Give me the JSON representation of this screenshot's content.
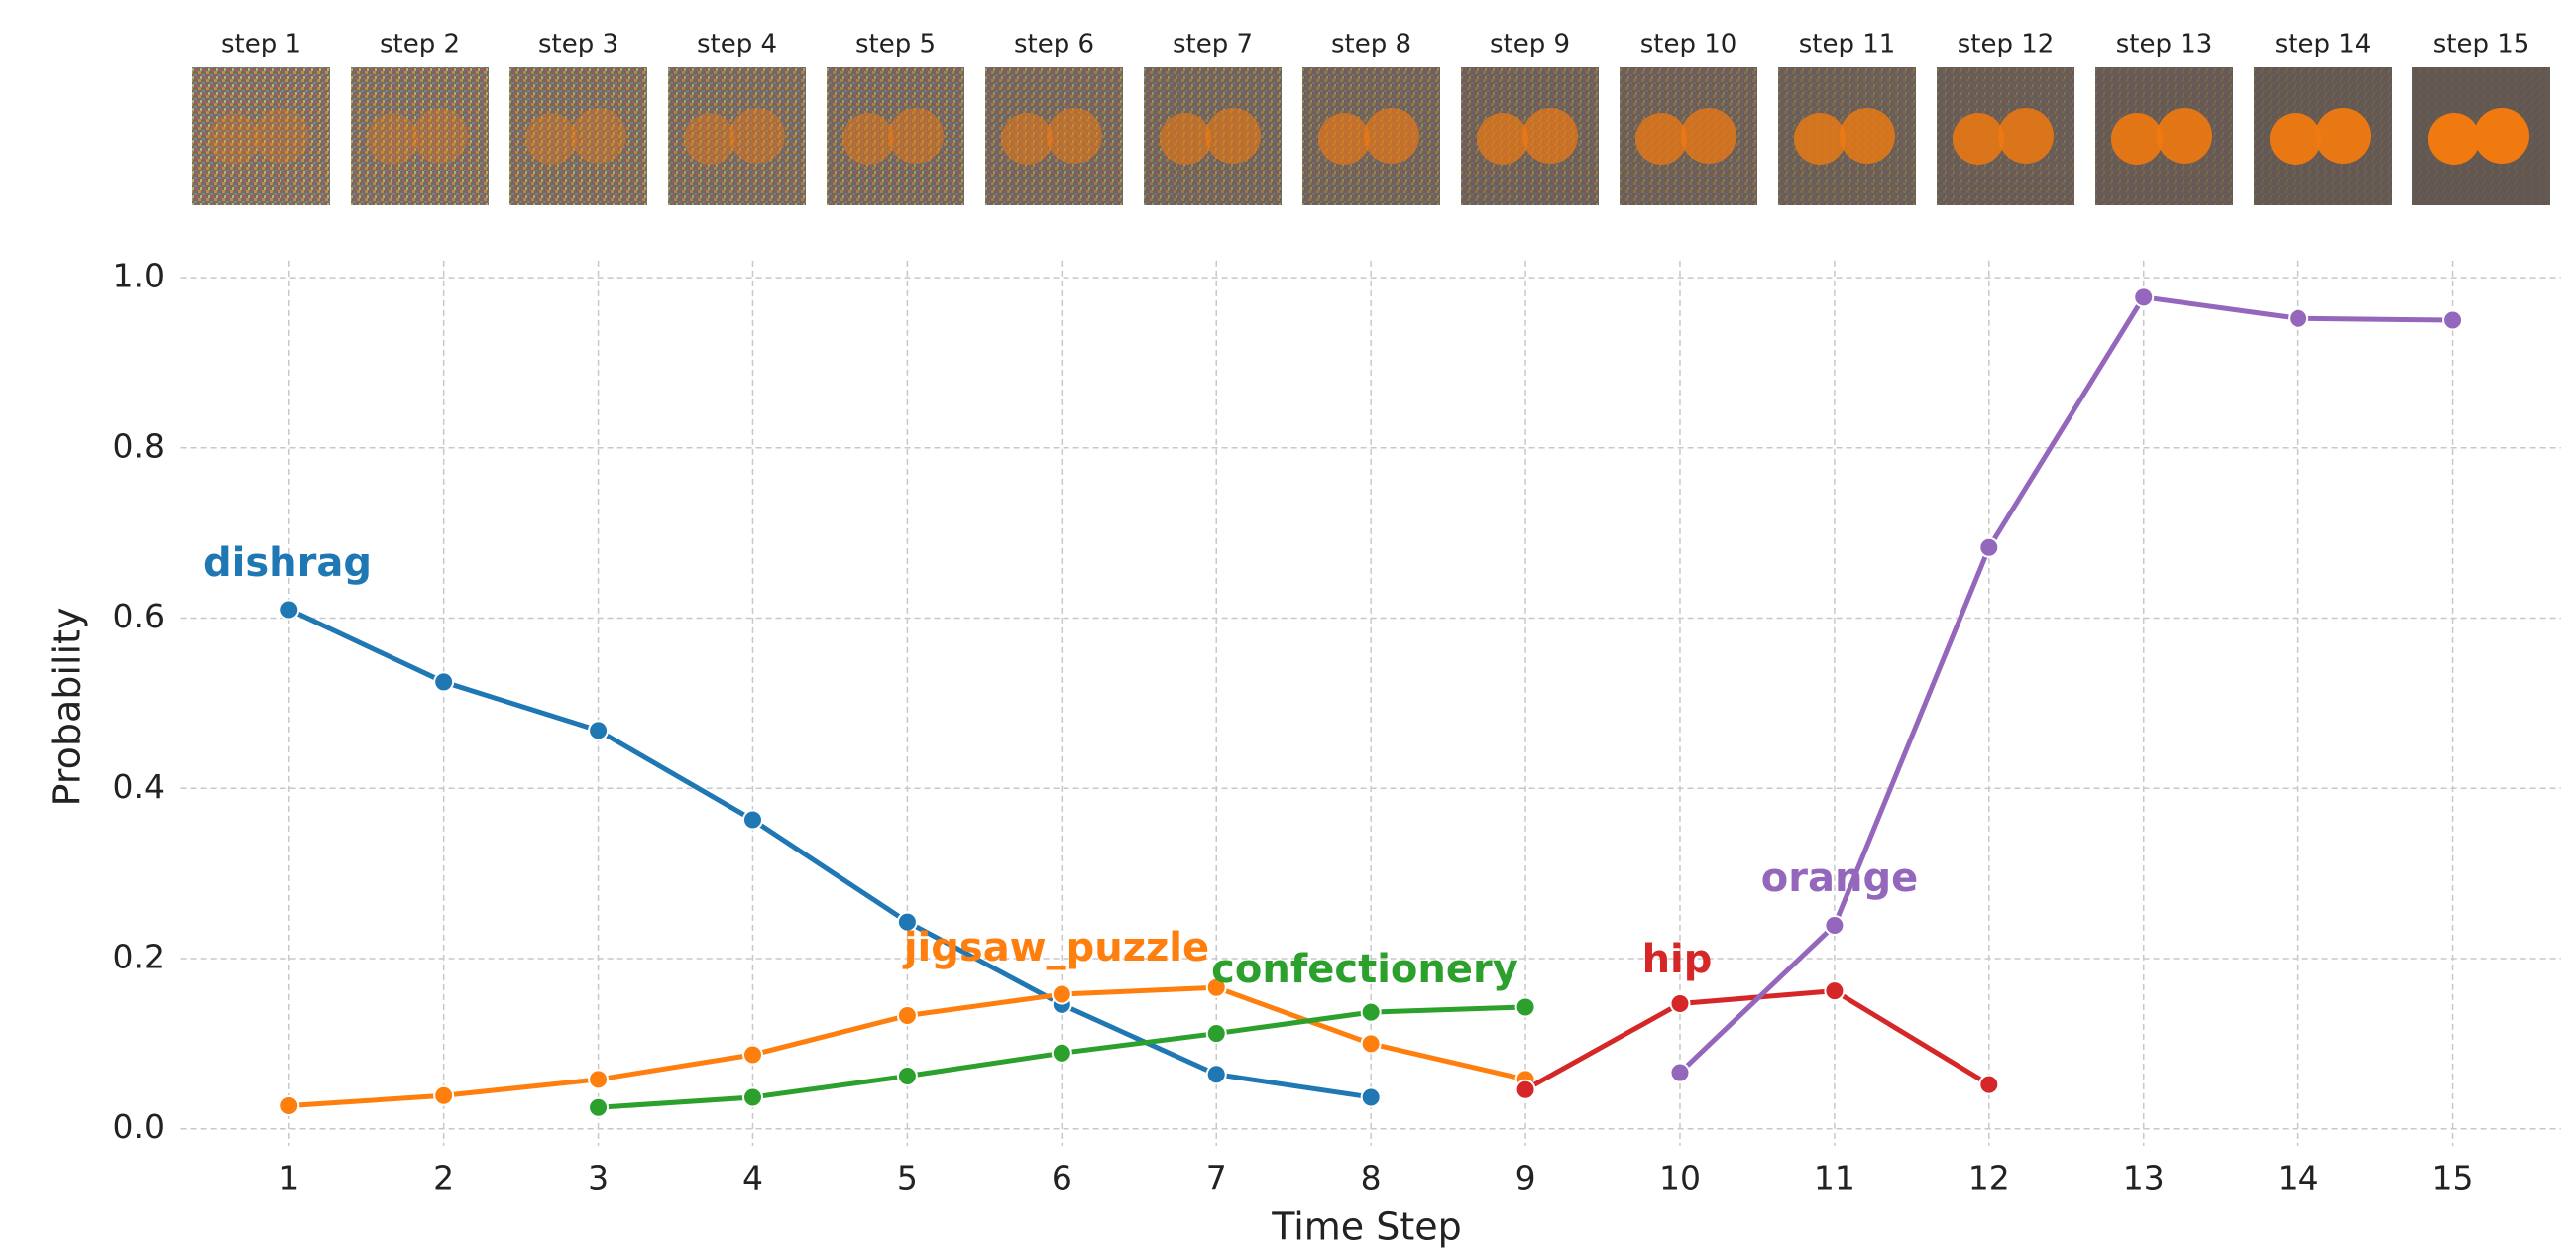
{
  "chart_data": {
    "type": "line",
    "image_labels": [
      "step 1",
      "step 2",
      "step 3",
      "step 4",
      "step 5",
      "step 6",
      "step 7",
      "step 8",
      "step 9",
      "step 10",
      "step 11",
      "step 12",
      "step 13",
      "step 14",
      "step 15"
    ],
    "x_label": "Time Step",
    "y_label": "Probability",
    "x": [
      1,
      2,
      3,
      4,
      5,
      6,
      7,
      8,
      9,
      10,
      11,
      12,
      13,
      14,
      15
    ],
    "series": [
      {
        "name": "dishrag",
        "color": "#1f77b4",
        "values": [
          0.61,
          0.525,
          0.468,
          0.363,
          0.243,
          0.146,
          0.064,
          0.037,
          null,
          null,
          null,
          null,
          null,
          null,
          null
        ]
      },
      {
        "name": "jigsaw_puzzle",
        "color": "#ff7f0e",
        "values": [
          0.027,
          0.039,
          0.058,
          0.087,
          0.133,
          0.158,
          0.166,
          0.1,
          0.058,
          null,
          null,
          null,
          null,
          null,
          null
        ]
      },
      {
        "name": "confectionery",
        "color": "#2ca02c",
        "values": [
          null,
          null,
          0.025,
          0.037,
          0.062,
          0.089,
          0.112,
          0.137,
          0.143,
          null,
          null,
          null,
          null,
          null,
          null
        ]
      },
      {
        "name": "hip",
        "color": "#d62728",
        "values": [
          null,
          null,
          null,
          null,
          null,
          null,
          null,
          null,
          0.046,
          0.147,
          0.162,
          0.052,
          null,
          null,
          null
        ]
      },
      {
        "name": "orange",
        "color": "#9467bd",
        "values": [
          null,
          null,
          null,
          null,
          null,
          null,
          null,
          null,
          null,
          0.066,
          0.239,
          0.683,
          0.977,
          0.952,
          0.95
        ]
      }
    ],
    "xlim": [
      0.3,
      15.7
    ],
    "xticks": [
      1,
      2,
      3,
      4,
      5,
      6,
      7,
      8,
      9,
      10,
      11,
      12,
      13,
      14,
      15
    ],
    "ylim": [
      -0.02,
      1.02
    ],
    "yticks": [
      {
        "value": 0,
        "label": "0.0"
      },
      0.2,
      0.4,
      0.6,
      0.8,
      {
        "value": 1,
        "label": "1.0"
      }
    ],
    "grid": true
  }
}
